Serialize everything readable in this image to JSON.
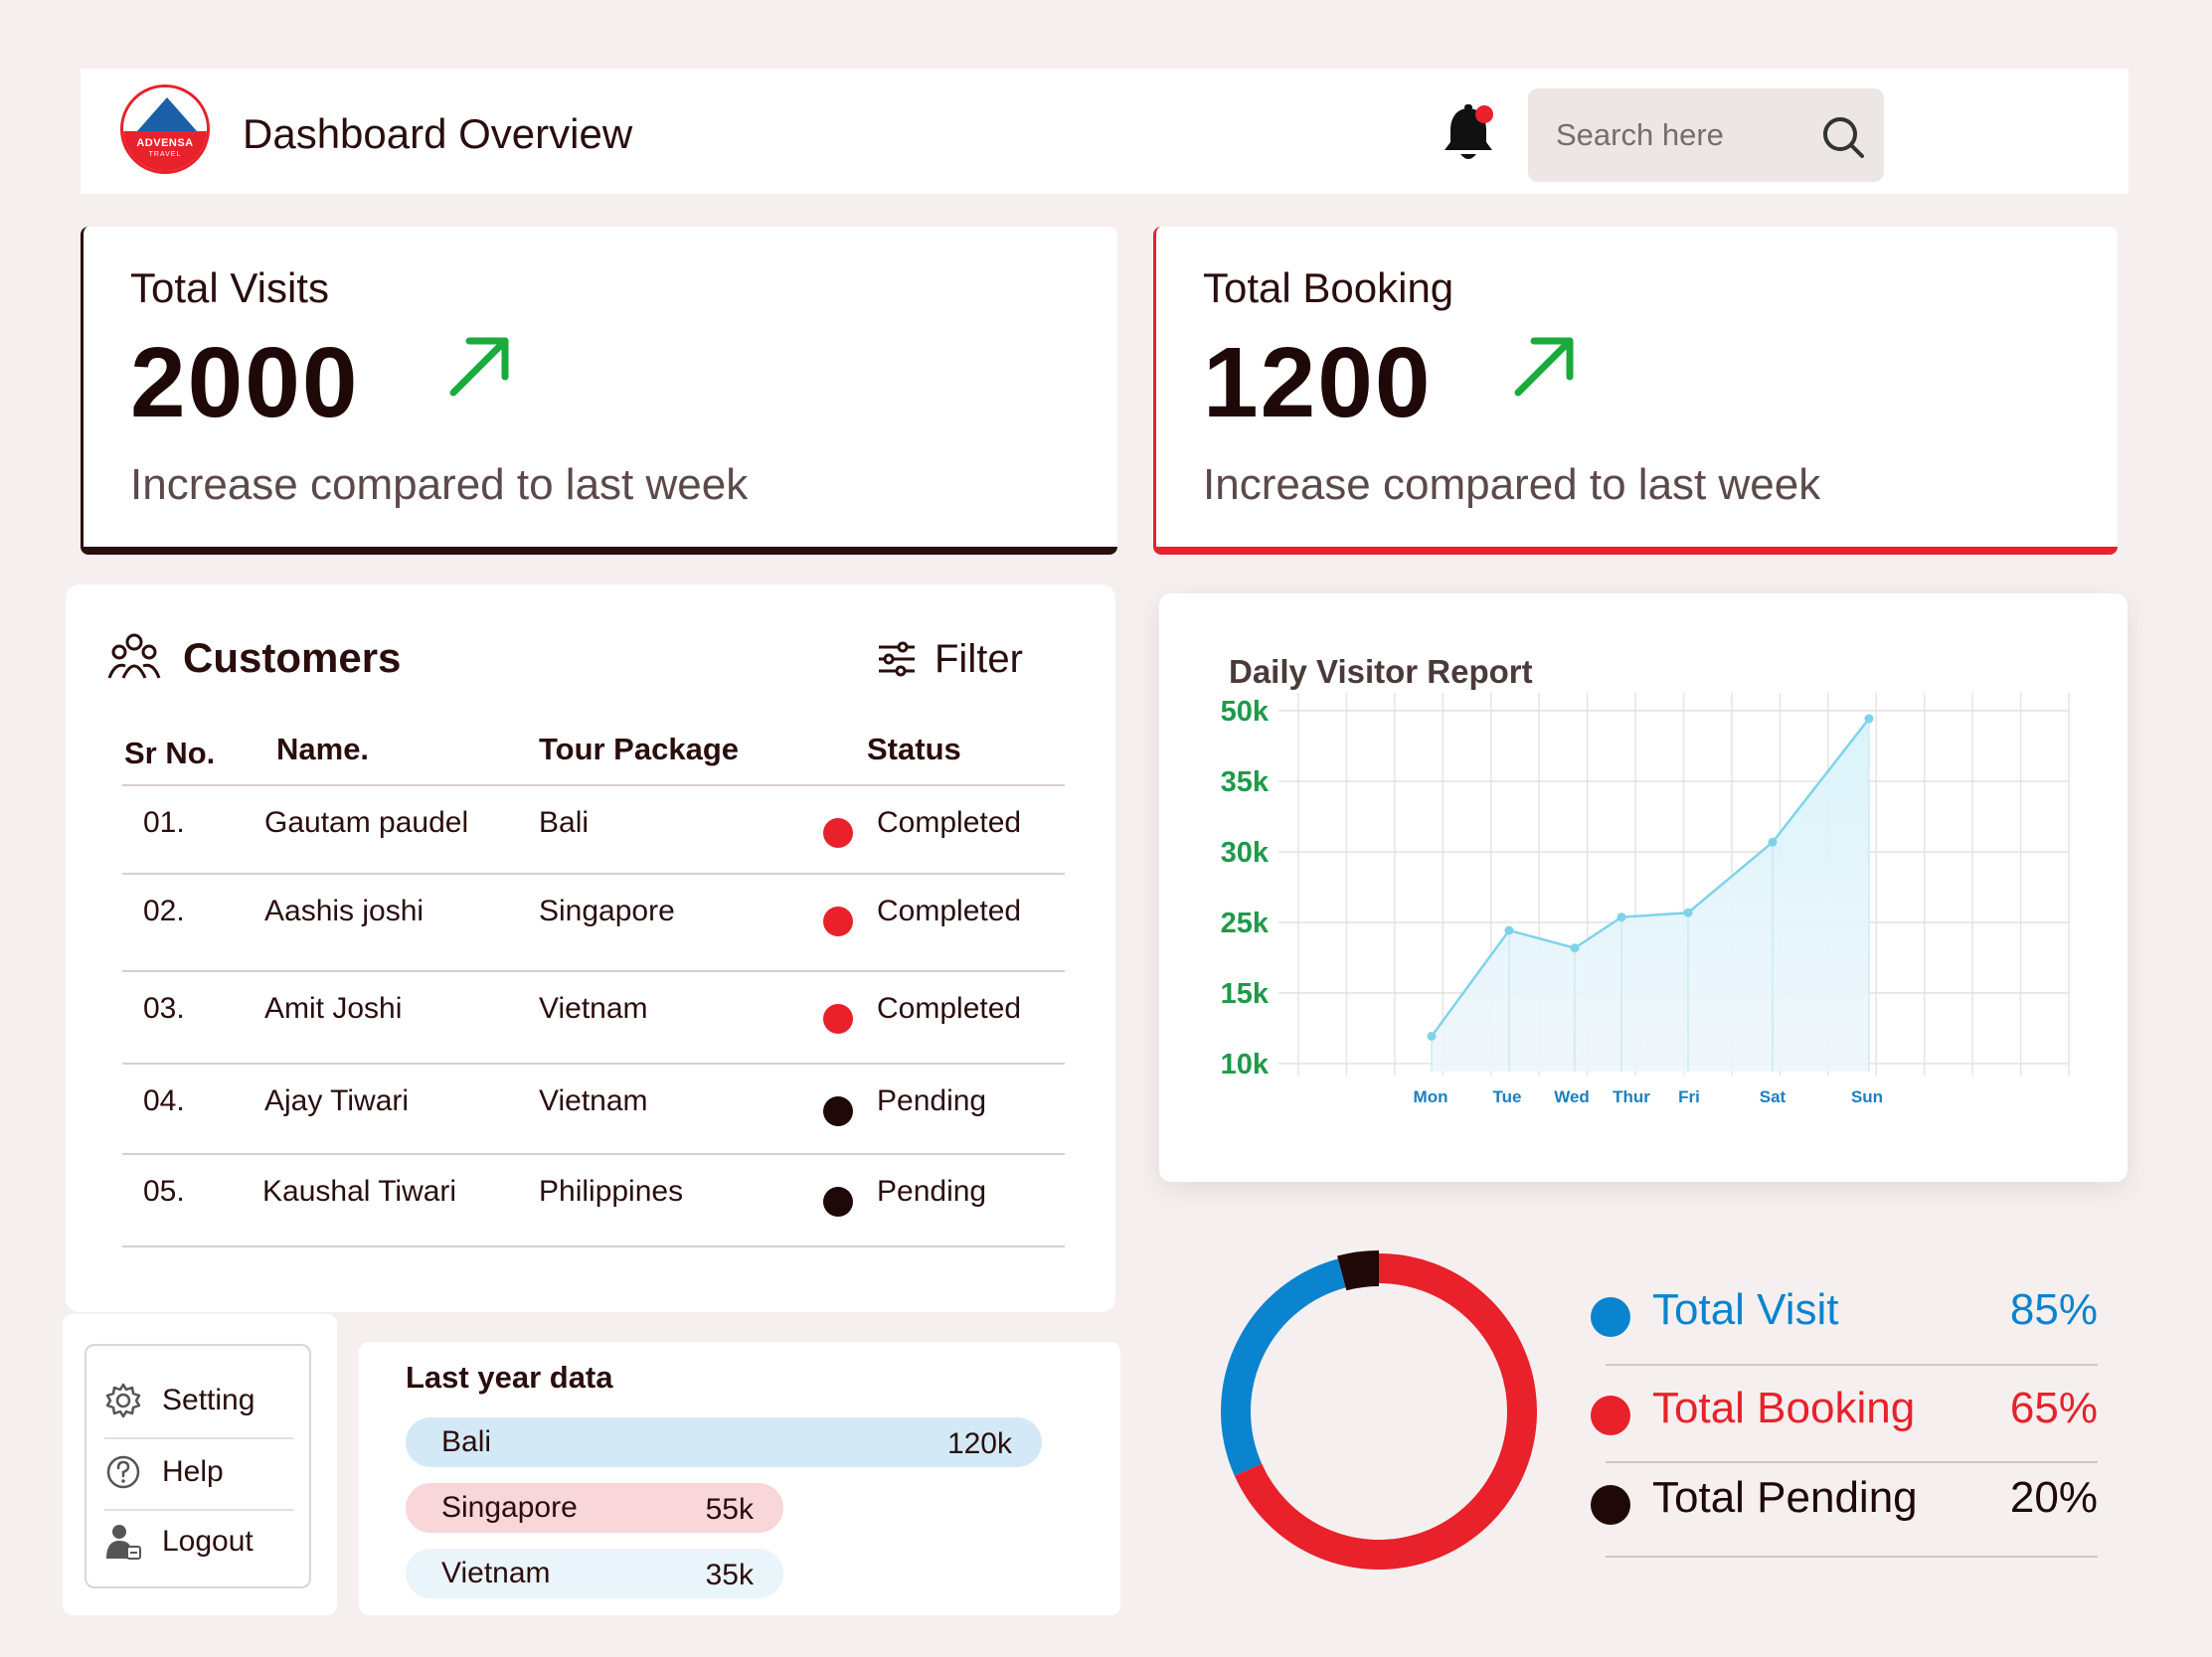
{
  "header": {
    "logo_text": "ADVENSA",
    "logo_subtext": "TRAVEL",
    "title": "Dashboard Overview",
    "search_placeholder": "Search here",
    "notification_color": "#e8212a"
  },
  "stats": [
    {
      "label": "Total Visits",
      "value": "2000",
      "description": "Increase compared to last week",
      "accent": "#2a0d0d"
    },
    {
      "label": "Total Booking",
      "value": "1200",
      "description": "Increase compared to last week",
      "accent": "#e8212a"
    }
  ],
  "customers": {
    "title": "Customers",
    "filter_label": "Filter",
    "columns": [
      "Sr No.",
      "Name.",
      "Tour Package",
      "Status"
    ],
    "rows": [
      {
        "sr": "01.",
        "name": "Gautam paudel",
        "package": "Bali",
        "status": "Completed",
        "status_color": "#e8212a"
      },
      {
        "sr": "02.",
        "name": "Aashis joshi",
        "package": "Singapore",
        "status": "Completed",
        "status_color": "#e8212a"
      },
      {
        "sr": "03.",
        "name": "Amit Joshi",
        "package": "Vietnam",
        "status": "Completed",
        "status_color": "#e8212a"
      },
      {
        "sr": "04.",
        "name": "Ajay Tiwari",
        "package": "Vietnam",
        "status": "Pending",
        "status_color": "#1f0808"
      },
      {
        "sr": "05.",
        "name": "Kaushal Tiwari",
        "package": "Philippines",
        "status": "Pending",
        "status_color": "#1f0808"
      }
    ]
  },
  "menu": {
    "items": [
      {
        "label": "Setting",
        "icon": "gear-icon"
      },
      {
        "label": "Help",
        "icon": "help-icon"
      },
      {
        "label": "Logout",
        "icon": "logout-icon"
      }
    ]
  },
  "last_year": {
    "title": "Last year data",
    "items": [
      {
        "name": "Bali",
        "value": "120k",
        "amount": 120,
        "color": "#d3e9f6"
      },
      {
        "name": "Singapore",
        "value": "55k",
        "amount": 55,
        "color": "#f8d6d9"
      },
      {
        "name": "Vietnam",
        "value": "35k",
        "amount": 35,
        "color": "#eaf4fb"
      }
    ]
  },
  "chart_data": {
    "type": "area",
    "title": "Daily Visitor Report",
    "categories": [
      "Mon",
      "Tue",
      "Wed",
      "Thur",
      "Fri",
      "Sat",
      "Sun"
    ],
    "y_ticks": [
      "50k",
      "35k",
      "30k",
      "25k",
      "15k",
      "10k"
    ],
    "values": [
      14,
      26,
      24,
      27.5,
      28,
      36,
      50
    ],
    "line_color": "#7ed3ea",
    "fill_color": "#d8f3fa",
    "grid": true
  },
  "donut": {
    "segments": [
      {
        "name": "Total Visit",
        "value": "85%",
        "color": "#0a84cf"
      },
      {
        "name": "Total Booking",
        "value": "65%",
        "color": "#e8212a"
      },
      {
        "name": "Total Pending",
        "value": "20%",
        "color": "#1f0808"
      }
    ]
  }
}
